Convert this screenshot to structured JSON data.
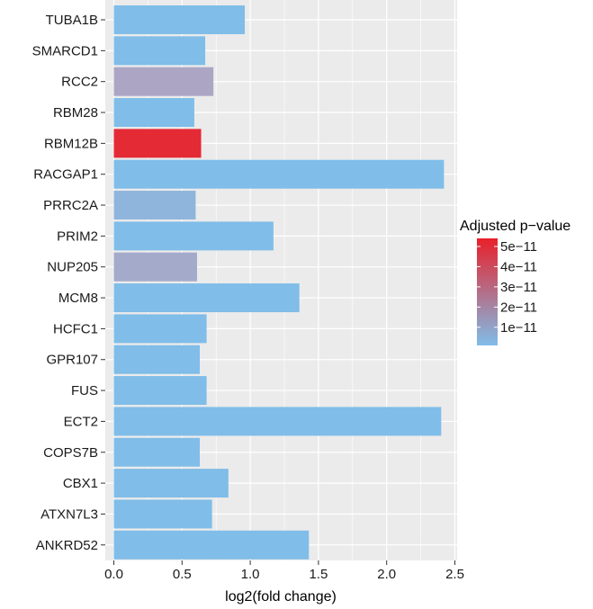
{
  "chart_data": {
    "type": "bar",
    "orientation": "horizontal",
    "categories": [
      "TUBA1B",
      "SMARCD1",
      "RCC2",
      "RBM28",
      "RBM12B",
      "RACGAP1",
      "PRRC2A",
      "PRIM2",
      "NUP205",
      "MCM8",
      "HCFC1",
      "GPR107",
      "FUS",
      "ECT2",
      "COPS7B",
      "CBX1",
      "ATXN7L3",
      "ANKRD52"
    ],
    "values": [
      0.96,
      0.67,
      0.73,
      0.59,
      0.64,
      2.42,
      0.6,
      1.17,
      0.61,
      1.36,
      0.68,
      0.63,
      0.68,
      2.4,
      0.63,
      0.84,
      0.72,
      1.43
    ],
    "p_values": [
      1e-12,
      1e-12,
      2.2e-11,
      1e-12,
      5.2e-11,
      1e-12,
      8e-12,
      1e-12,
      1.8e-11,
      1e-12,
      1e-12,
      1e-12,
      1e-12,
      1e-12,
      1e-12,
      1e-12,
      1e-12,
      1e-12
    ],
    "xlabel": "log2(fold change)",
    "ylabel": "",
    "xlim": [
      0,
      2.5
    ],
    "xticks": [
      0.0,
      0.5,
      1.0,
      1.5,
      2.0,
      2.5
    ],
    "xtick_labels": [
      "0.0",
      "0.5",
      "1.0",
      "1.5",
      "2.0",
      "2.5"
    ],
    "grid": true,
    "legend": {
      "title": "Adjusted p−value",
      "placement": "right",
      "labels": [
        "5e−11",
        "4e−11",
        "3e−11",
        "2e−11",
        "1e−11"
      ],
      "breaks": [
        5e-11,
        4e-11,
        3e-11,
        2e-11,
        1e-11
      ],
      "range": [
        1e-12,
        5.4e-11
      ],
      "color_low": "#80BDE8",
      "color_high": "#E8202A"
    },
    "panel_color": "#EBEBEB",
    "grid_color": "#FFFFFF"
  }
}
